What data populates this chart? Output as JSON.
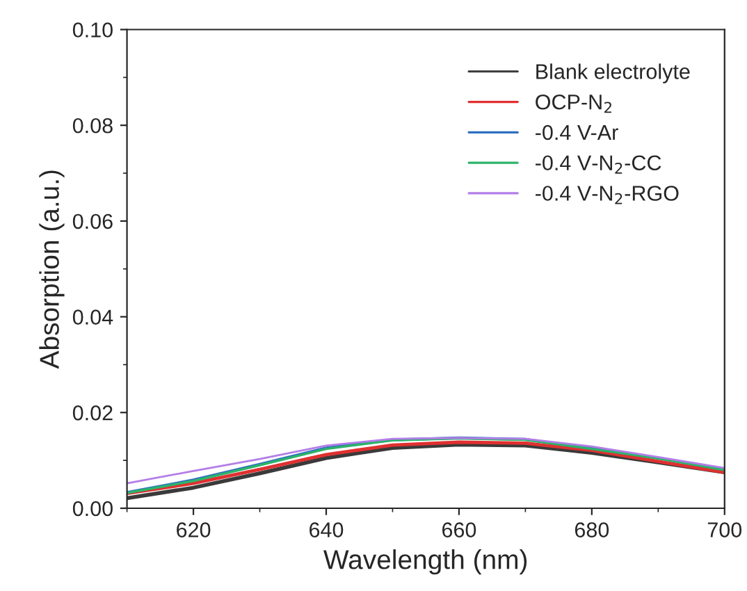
{
  "chart_data": {
    "type": "line",
    "xlabel": "Wavelength (nm)",
    "ylabel": "Absorption (a.u.)",
    "x": [
      610,
      620,
      630,
      640,
      650,
      660,
      670,
      680,
      690,
      700
    ],
    "series": [
      {
        "name": "Blank electrolyte",
        "color": "#3a3a3a",
        "values": [
          0.0021,
          0.0043,
          0.0073,
          0.0105,
          0.0126,
          0.0133,
          0.0131,
          0.0116,
          0.0096,
          0.0075
        ]
      },
      {
        "name": "OCP-N$_{2}$",
        "color": "#e03030",
        "values": [
          0.0031,
          0.0052,
          0.0081,
          0.0112,
          0.0132,
          0.0138,
          0.0136,
          0.0121,
          0.0098,
          0.0075
        ]
      },
      {
        "name": "-0.4 V-Ar",
        "color": "#2f6fc0",
        "values": [
          0.0033,
          0.0059,
          0.0092,
          0.0126,
          0.0143,
          0.0147,
          0.0144,
          0.0125,
          0.0105,
          0.0081
        ]
      },
      {
        "name": "-0.4 V-N$_{2}$-CC",
        "color": "#2db36a",
        "values": [
          0.0032,
          0.0057,
          0.009,
          0.0124,
          0.0142,
          0.0146,
          0.0143,
          0.0124,
          0.0104,
          0.008
        ]
      },
      {
        "name": "-0.4 V-N$_{2}$-RGO",
        "color": "#b37ee8",
        "values": [
          0.0052,
          0.0078,
          0.0103,
          0.0131,
          0.0145,
          0.0147,
          0.0145,
          0.0129,
          0.0107,
          0.0084
        ]
      }
    ],
    "xlim": [
      610,
      700
    ],
    "xticks": [
      620,
      640,
      660,
      680,
      700
    ],
    "ylim": [
      0,
      0.1
    ],
    "yticks": [
      {
        "value": 0,
        "label": "0.00"
      },
      {
        "value": 0.02,
        "label": "0.02"
      },
      {
        "value": 0.04,
        "label": "0.04"
      },
      {
        "value": 0.06,
        "label": "0.06"
      },
      {
        "value": 0.08,
        "label": "0.08"
      },
      {
        "value": 0.1,
        "label": "0.10"
      }
    ],
    "grid": false,
    "legend": "top right",
    "line_style": "solid",
    "marker": "none"
  }
}
